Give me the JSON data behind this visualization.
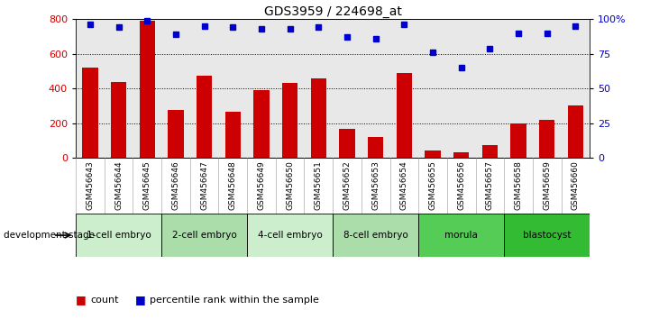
{
  "title": "GDS3959 / 224698_at",
  "samples": [
    "GSM456643",
    "GSM456644",
    "GSM456645",
    "GSM456646",
    "GSM456647",
    "GSM456648",
    "GSM456649",
    "GSM456650",
    "GSM456651",
    "GSM456652",
    "GSM456653",
    "GSM456654",
    "GSM456655",
    "GSM456656",
    "GSM456657",
    "GSM456658",
    "GSM456659",
    "GSM456660"
  ],
  "counts": [
    520,
    440,
    790,
    275,
    475,
    265,
    390,
    430,
    460,
    165,
    120,
    490,
    45,
    30,
    75,
    200,
    220,
    300
  ],
  "percentiles": [
    96,
    94,
    99,
    89,
    95,
    94,
    93,
    93,
    94,
    87,
    86,
    96,
    76,
    65,
    79,
    90,
    90,
    95
  ],
  "stages": [
    {
      "label": "1-cell embryo",
      "start": 0,
      "end": 3
    },
    {
      "label": "2-cell embryo",
      "start": 3,
      "end": 6
    },
    {
      "label": "4-cell embryo",
      "start": 6,
      "end": 9
    },
    {
      "label": "8-cell embryo",
      "start": 9,
      "end": 12
    },
    {
      "label": "morula",
      "start": 12,
      "end": 15
    },
    {
      "label": "blastocyst",
      "start": 15,
      "end": 18
    }
  ],
  "stage_colors": [
    "#cceecc",
    "#aaddaa",
    "#cceecc",
    "#aaddaa",
    "#55cc55",
    "#33bb33"
  ],
  "bar_color": "#cc0000",
  "dot_color": "#0000cc",
  "ylim_left": [
    0,
    800
  ],
  "ylim_right": [
    0,
    100
  ],
  "yticks_left": [
    0,
    200,
    400,
    600,
    800
  ],
  "yticks_right": [
    0,
    25,
    50,
    75,
    100
  ],
  "grid_values": [
    200,
    400,
    600
  ],
  "background_color": "#ffffff",
  "plot_bg": "#e8e8e8",
  "sample_bg": "#cccccc"
}
